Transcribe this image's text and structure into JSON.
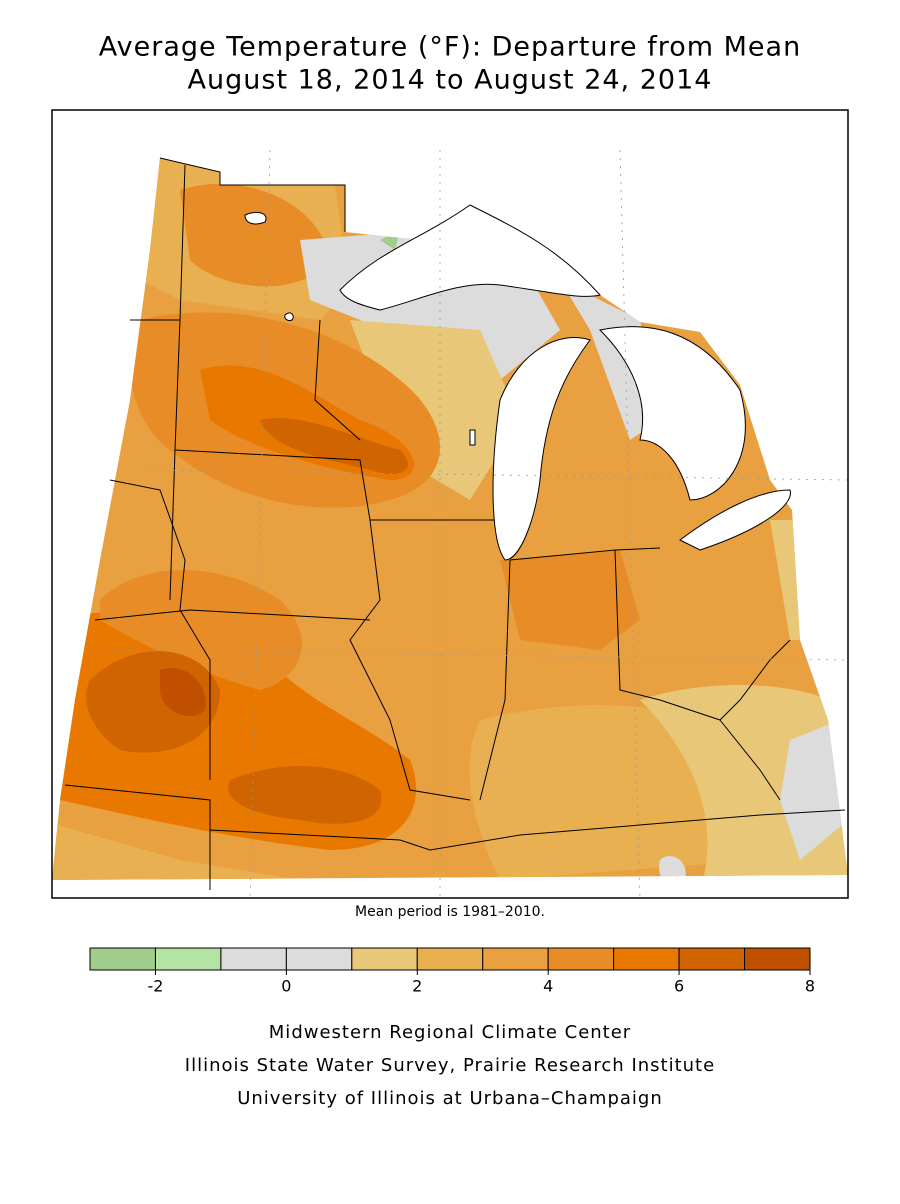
{
  "header": {
    "title": [
      "Average Temperature (°F): Departure from Mean",
      "August 18, 2014 to August 24, 2014"
    ]
  },
  "map": {
    "note": "Mean period is 1981–2010."
  },
  "legend": {
    "bins": [
      -3,
      -2,
      -1,
      0,
      1,
      2,
      3,
      4,
      5,
      6,
      7,
      8
    ],
    "colors": [
      "#a0cc8c",
      "#b4e4a4",
      "#dcdcdc",
      "#dcdcdc",
      "#e8c878",
      "#e8b050",
      "#e8a040",
      "#e88c28",
      "#e87800",
      "#d06400",
      "#c05000"
    ],
    "ticks": [
      -2,
      0,
      2,
      4,
      6,
      8
    ]
  },
  "credits": [
    "Midwestern Regional Climate Center",
    "Illinois State Water Survey, Prairie Research Institute",
    "University of Illinois at Urbana–Champaign"
  ]
}
